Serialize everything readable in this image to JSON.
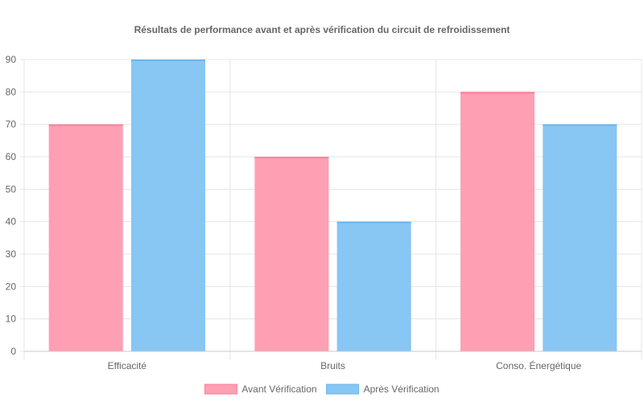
{
  "chart_data": {
    "type": "bar",
    "title": "Résultats de performance avant et après vérification du circuit de refroidissement",
    "categories": [
      "Efficacité",
      "Bruits",
      "Conso. Énergétique"
    ],
    "series": [
      {
        "name": "Avant Vérification",
        "values": [
          70,
          60,
          80
        ],
        "color": "#ff9fb3",
        "border": "#ff7f9c"
      },
      {
        "name": "Après Vérification",
        "values": [
          90,
          40,
          70
        ],
        "color": "#88c6f3",
        "border": "#6cb6ee"
      }
    ],
    "ylim": [
      0,
      90
    ],
    "yticks": [
      0,
      10,
      20,
      30,
      40,
      50,
      60,
      70,
      80,
      90
    ],
    "grid": true,
    "legend": "bottom"
  }
}
